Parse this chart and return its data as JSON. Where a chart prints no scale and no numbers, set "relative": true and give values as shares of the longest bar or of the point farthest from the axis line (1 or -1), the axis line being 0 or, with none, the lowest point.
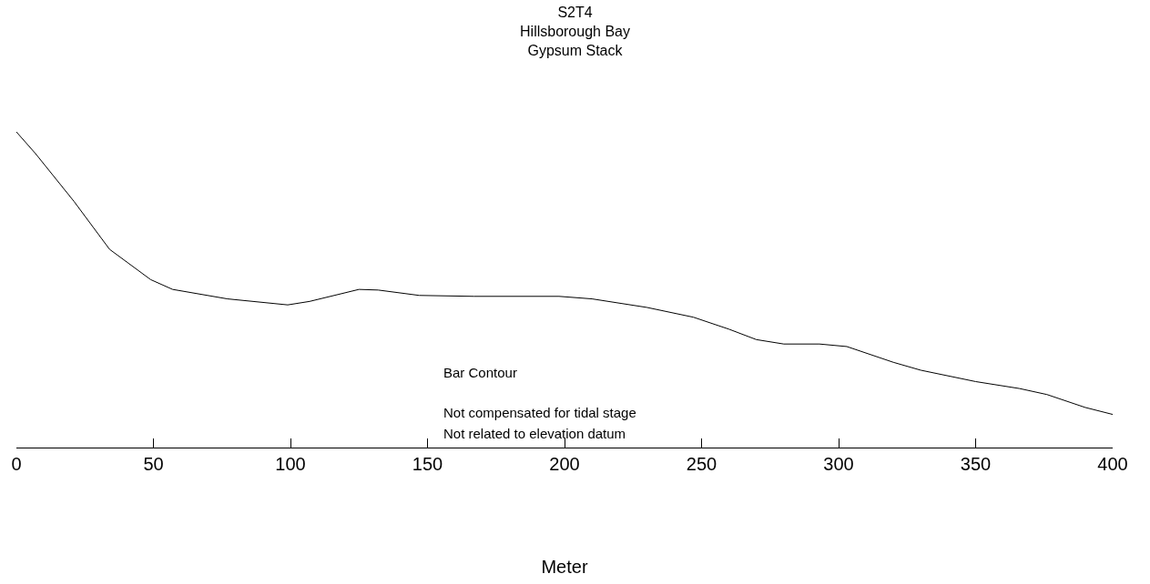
{
  "chart_data": {
    "type": "line",
    "title": "S2T4\nHillsborough Bay\nGypsum Stack",
    "xlabel": "Meter",
    "relative": true,
    "x": [
      0,
      7,
      21,
      34,
      49,
      57,
      77,
      99,
      107,
      125,
      132,
      147,
      167,
      198,
      210,
      230,
      247,
      260,
      270,
      280,
      293,
      303,
      320,
      330,
      350,
      366,
      376,
      390,
      400
    ],
    "series": [
      {
        "color": "#000000",
        "values": [
          1.0,
          0.931,
          0.78,
          0.628,
          0.532,
          0.501,
          0.471,
          0.452,
          0.463,
          0.501,
          0.499,
          0.482,
          0.479,
          0.479,
          0.471,
          0.444,
          0.413,
          0.375,
          0.342,
          0.328,
          0.328,
          0.32,
          0.27,
          0.245,
          0.209,
          0.187,
          0.168,
          0.127,
          0.105
        ]
      }
    ],
    "xlim": [
      0,
      400
    ],
    "xticks": [
      0,
      50,
      100,
      150,
      200,
      250,
      300,
      350,
      400
    ],
    "annotations": [
      "Bar Contour",
      "Not compensated for tidal stage",
      "Not related to elevation datum"
    ],
    "legend": false,
    "marker": "none",
    "line_style": "solid"
  }
}
